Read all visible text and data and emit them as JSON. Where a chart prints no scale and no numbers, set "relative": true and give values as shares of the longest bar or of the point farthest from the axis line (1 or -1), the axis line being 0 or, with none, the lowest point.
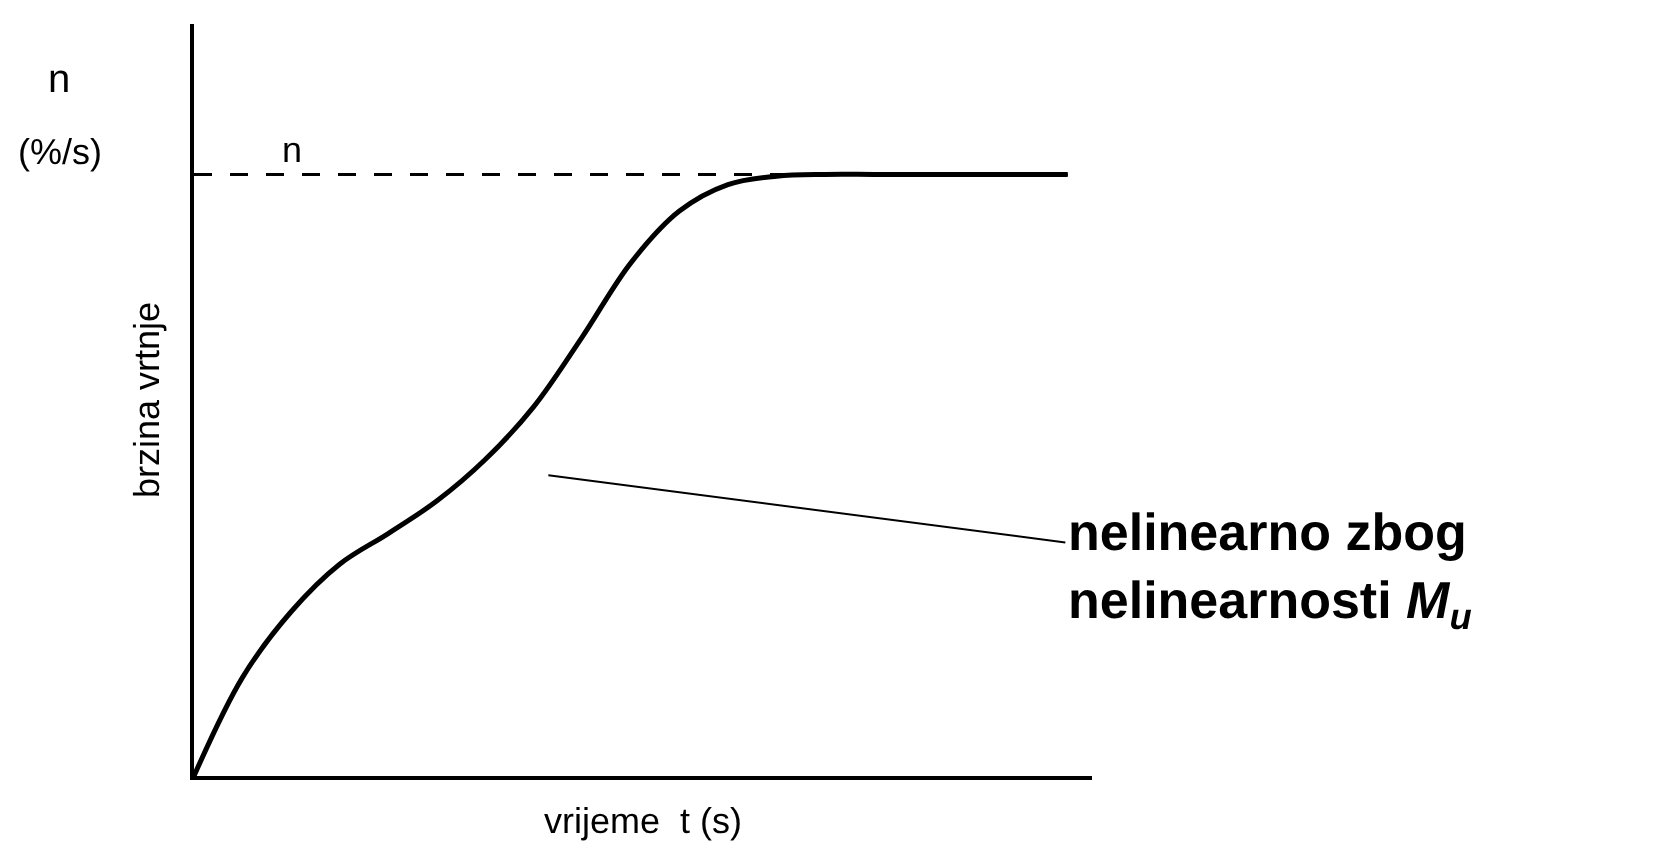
{
  "chart_data": {
    "type": "line",
    "relative": true,
    "xlabel": "vrijeme  t (s)",
    "ylabel": "brzina vrtnje",
    "categories": [
      null,
      null,
      null,
      null,
      null,
      null,
      null,
      null,
      null,
      null,
      null,
      null,
      null,
      null,
      null,
      null,
      null,
      null,
      null
    ],
    "series": [
      {
        "color": "#000000",
        "values": [
          0,
          0.164,
          0.273,
          0.352,
          0.403,
          0.457,
          0.526,
          0.614,
          0.73,
          0.853,
          0.939,
          0.983,
          0.997,
          1,
          1,
          1,
          1,
          1,
          1
        ]
      }
    ],
    "ref_lines": [
      {
        "axis": "y",
        "value": 1,
        "label": "n",
        "color": "#000000",
        "line_style": "dashed"
      }
    ],
    "annotations": [
      "n",
      "(%/s)",
      "nelinearno zbog nelinearnosti M$_{u}$"
    ],
    "line_style": "solid",
    "marker": "none",
    "legend": false
  }
}
